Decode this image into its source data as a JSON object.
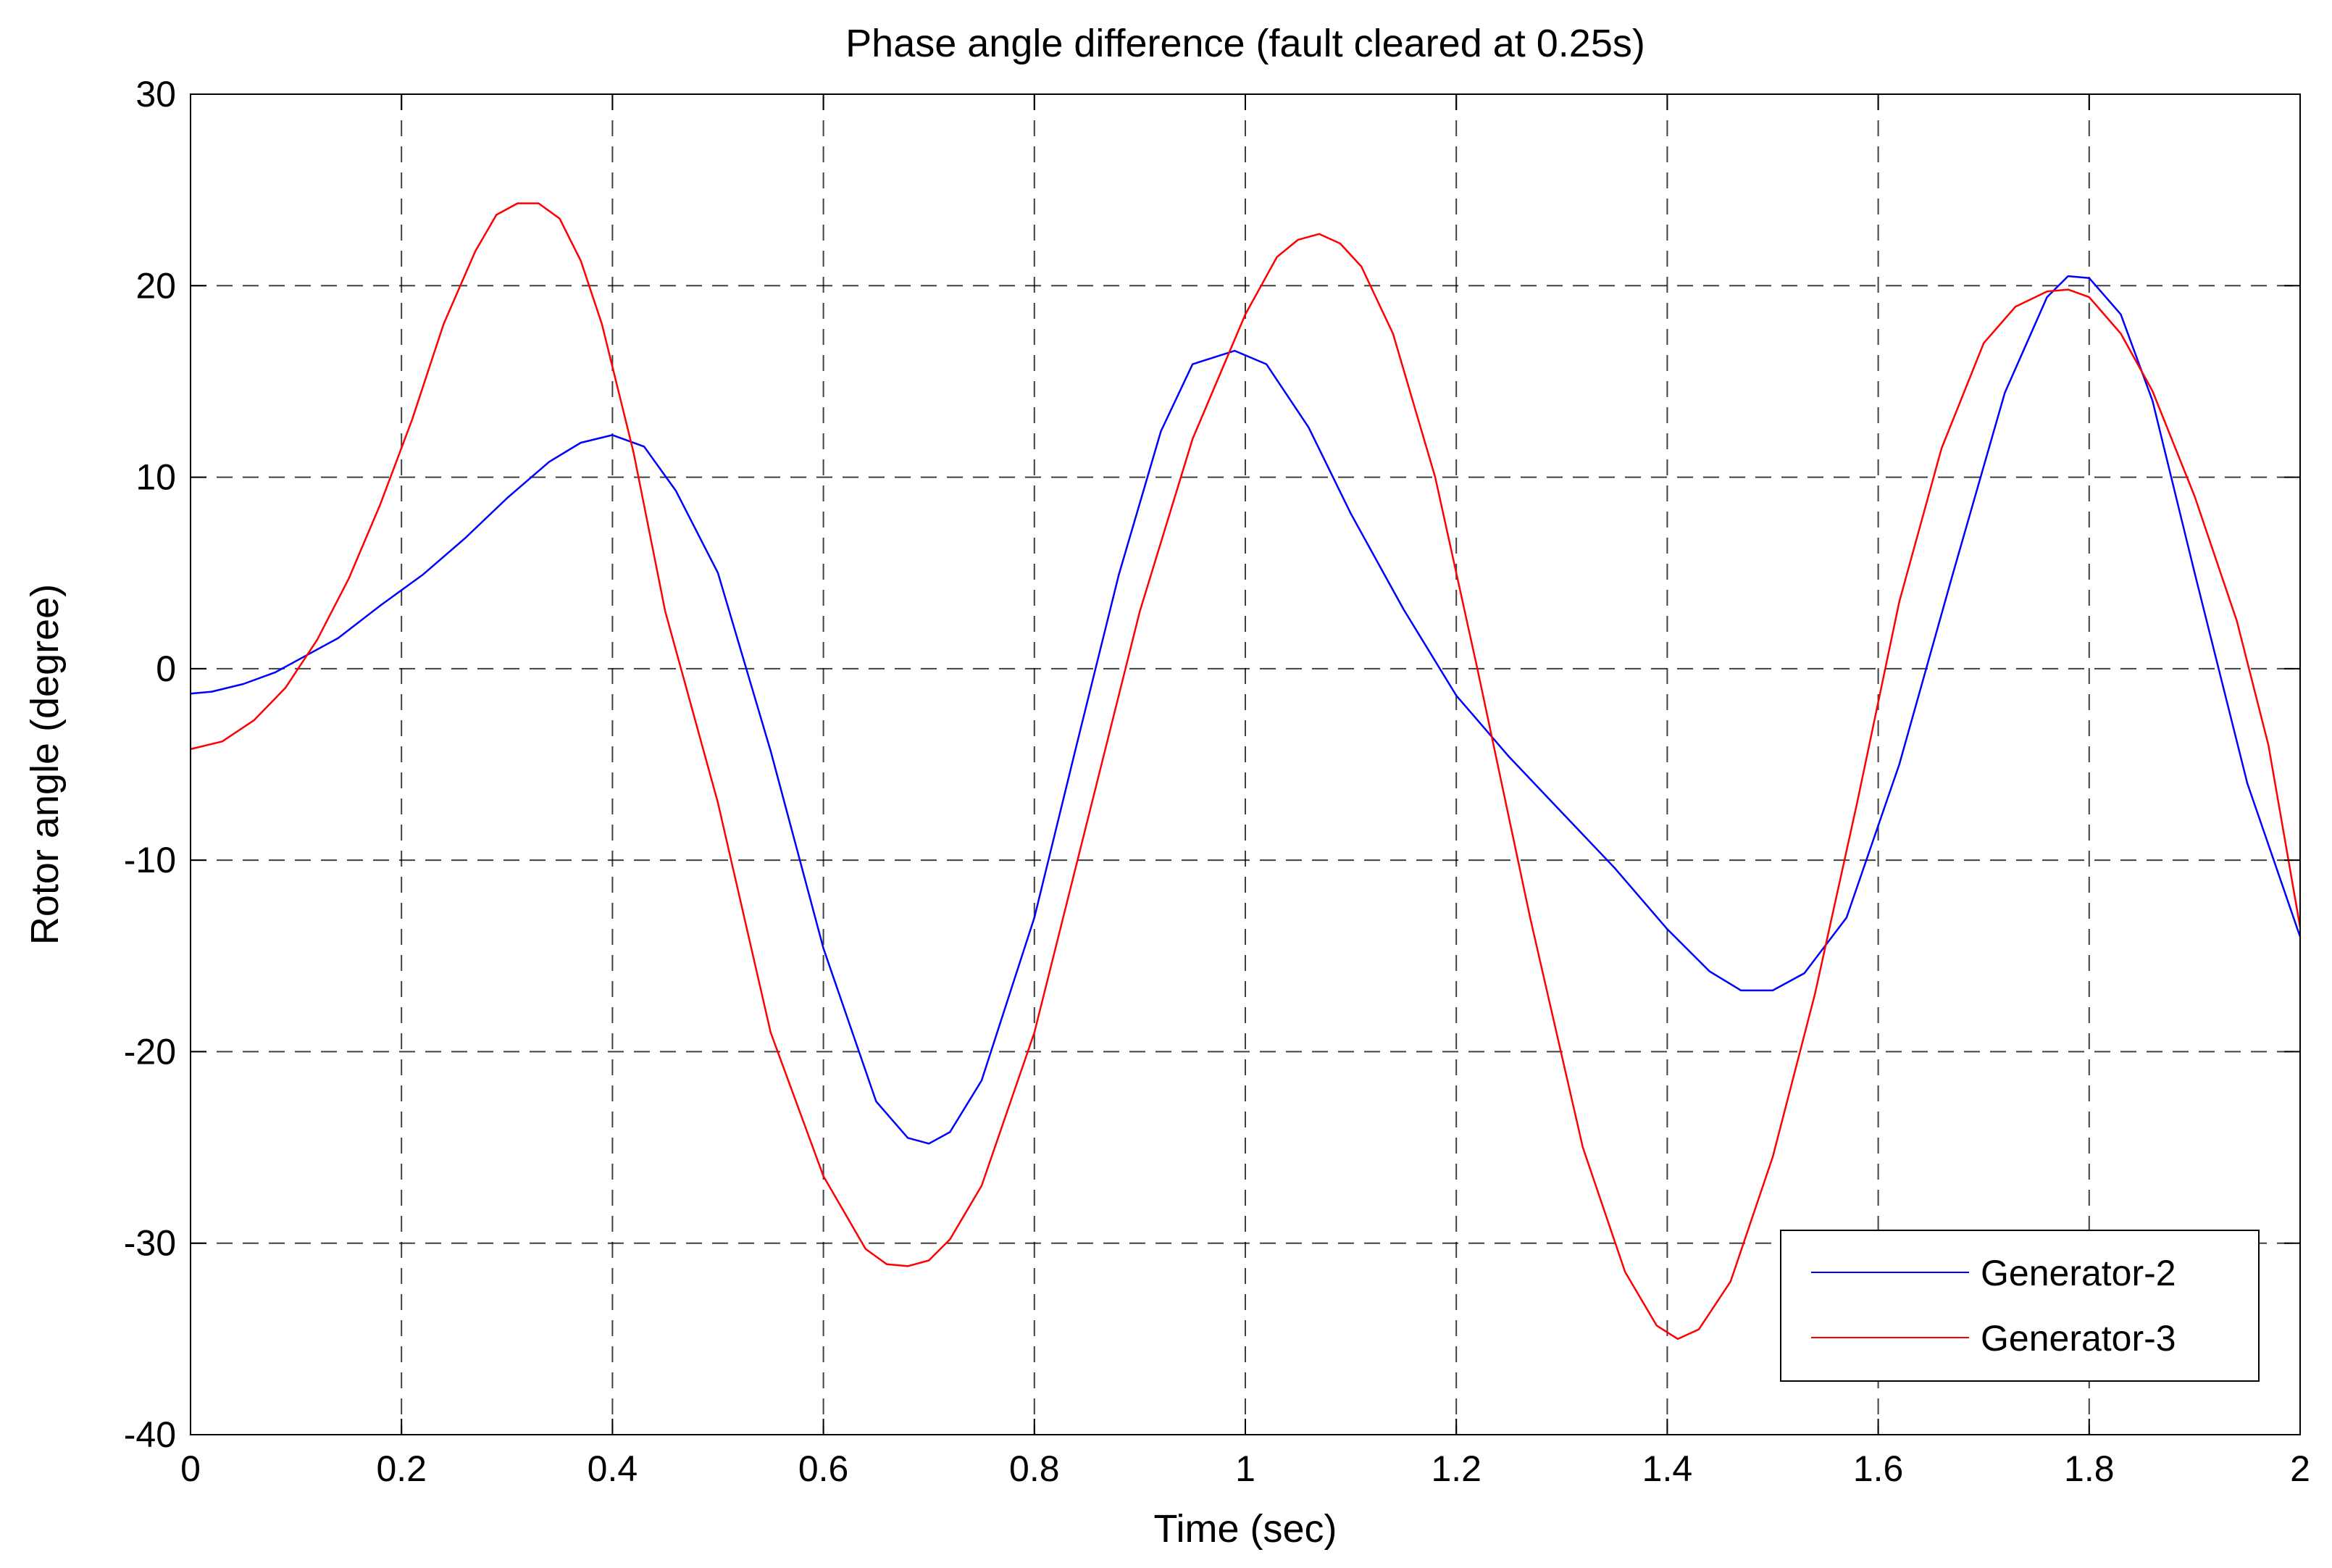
{
  "chart_data": {
    "type": "line",
    "title": "Phase angle difference (fault cleared at 0.25s)",
    "xlabel": "Time (sec)",
    "ylabel": "Rotor angle (degree)",
    "xlim": [
      0,
      2
    ],
    "ylim": [
      -40,
      30
    ],
    "x_ticks": [
      0,
      0.2,
      0.4,
      0.6,
      0.8,
      1,
      1.2,
      1.4,
      1.6,
      1.8,
      2
    ],
    "x_tick_labels": [
      "0",
      "0.2",
      "0.4",
      "0.6",
      "0.8",
      "1",
      "1.2",
      "1.4",
      "1.6",
      "1.8",
      "2"
    ],
    "y_ticks": [
      30,
      20,
      10,
      0,
      -10,
      -20,
      -30,
      -40
    ],
    "y_tick_labels": [
      "30",
      "20",
      "10",
      "0",
      "-10",
      "-20",
      "-30",
      "-40"
    ],
    "grid": true,
    "legend_position": "bottom-right",
    "series": [
      {
        "name": "Generator-2",
        "color": "#0000ff",
        "x": [
          0,
          0.02,
          0.05,
          0.08,
          0.1,
          0.14,
          0.18,
          0.22,
          0.26,
          0.3,
          0.34,
          0.37,
          0.4,
          0.43,
          0.46,
          0.5,
          0.55,
          0.6,
          0.65,
          0.68,
          0.7,
          0.72,
          0.75,
          0.8,
          0.84,
          0.88,
          0.92,
          0.95,
          0.99,
          1.02,
          1.06,
          1.1,
          1.15,
          1.2,
          1.25,
          1.3,
          1.35,
          1.4,
          1.44,
          1.47,
          1.5,
          1.53,
          1.57,
          1.62,
          1.67,
          1.72,
          1.76,
          1.78,
          1.8,
          1.83,
          1.86,
          1.9,
          1.95,
          2.0
        ],
        "y": [
          -1.3,
          -1.2,
          -0.8,
          -0.2,
          0.4,
          1.6,
          3.3,
          4.9,
          6.8,
          8.9,
          10.8,
          11.8,
          12.2,
          11.6,
          9.3,
          5.0,
          -4.3,
          -14.6,
          -22.6,
          -24.5,
          -24.8,
          -24.2,
          -21.5,
          -13.0,
          -4.0,
          4.9,
          12.4,
          15.9,
          16.6,
          15.9,
          12.6,
          8.1,
          3.1,
          -1.4,
          -4.6,
          -7.5,
          -10.4,
          -13.6,
          -15.8,
          -16.8,
          -16.8,
          -15.9,
          -13.0,
          -5.0,
          4.8,
          14.4,
          19.4,
          20.5,
          20.4,
          18.5,
          14.0,
          5.0,
          -6.0,
          -14.0
        ]
      },
      {
        "name": "Generator-3",
        "color": "#ff0000",
        "x": [
          0,
          0.03,
          0.06,
          0.09,
          0.12,
          0.15,
          0.18,
          0.21,
          0.24,
          0.27,
          0.29,
          0.31,
          0.33,
          0.35,
          0.37,
          0.39,
          0.42,
          0.45,
          0.5,
          0.55,
          0.6,
          0.64,
          0.66,
          0.68,
          0.7,
          0.72,
          0.75,
          0.8,
          0.85,
          0.9,
          0.95,
          1.0,
          1.03,
          1.05,
          1.07,
          1.09,
          1.11,
          1.14,
          1.18,
          1.22,
          1.27,
          1.32,
          1.36,
          1.39,
          1.41,
          1.43,
          1.46,
          1.5,
          1.54,
          1.58,
          1.62,
          1.66,
          1.7,
          1.73,
          1.76,
          1.78,
          1.8,
          1.83,
          1.86,
          1.9,
          1.94,
          1.97,
          2.0
        ],
        "y": [
          -4.2,
          -3.8,
          -2.7,
          -1.0,
          1.5,
          4.7,
          8.6,
          13.0,
          18.0,
          21.8,
          23.7,
          24.3,
          24.3,
          23.5,
          21.3,
          18.0,
          11.3,
          3.0,
          -7.0,
          -19.0,
          -26.5,
          -30.3,
          -31.1,
          -31.2,
          -30.9,
          -29.8,
          -27.0,
          -19.0,
          -8.0,
          3.0,
          12.0,
          18.5,
          21.5,
          22.4,
          22.7,
          22.2,
          21.0,
          17.5,
          10.0,
          0.0,
          -13.0,
          -25.0,
          -31.5,
          -34.3,
          -35.0,
          -34.5,
          -32.0,
          -25.5,
          -17.0,
          -7.0,
          3.5,
          11.5,
          17.0,
          18.9,
          19.7,
          19.8,
          19.4,
          17.5,
          14.5,
          9.0,
          2.5,
          -4.0,
          -13.5
        ]
      }
    ]
  }
}
